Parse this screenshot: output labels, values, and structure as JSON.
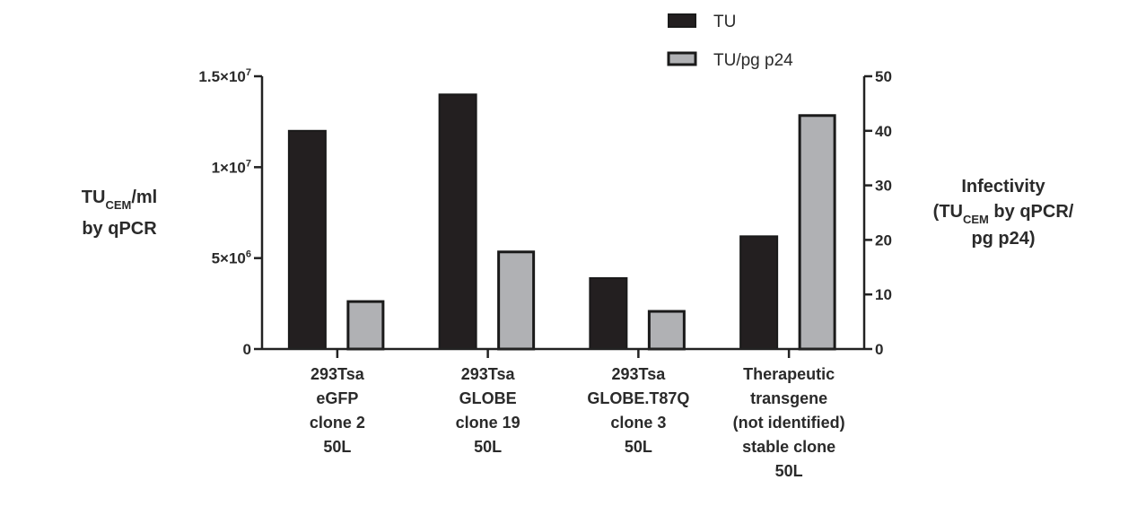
{
  "chart_data": {
    "type": "bar",
    "categories": [
      [
        "293Tsa",
        "eGFP",
        "clone 2",
        "50L"
      ],
      [
        "293Tsa",
        "GLOBE",
        "clone 19",
        "50L"
      ],
      [
        "293Tsa",
        "GLOBE.T87Q",
        "clone 3",
        "50L"
      ],
      [
        "Therapeutic",
        "transgene",
        "(not identified)",
        "stable clone",
        "50L"
      ]
    ],
    "series": [
      {
        "name": "TU",
        "axis": "left",
        "color": "#231f20",
        "values": [
          12000000,
          14000000,
          3900000,
          6200000
        ]
      },
      {
        "name": "TU/pg p24",
        "axis": "right",
        "color": "#b0b1b4",
        "values": [
          8.7,
          17.8,
          6.9,
          42.8
        ]
      }
    ],
    "left_axis": {
      "title_main": "TU",
      "title_sub": "CEM",
      "title_rest": "/ml",
      "title_line2": "by qPCR",
      "ylim": [
        0,
        15000000
      ],
      "ticks": [
        {
          "value": 0,
          "label": "0"
        },
        {
          "value": 5000000,
          "label_base": "5×10",
          "label_exp": "6"
        },
        {
          "value": 10000000,
          "label_base": "1×10",
          "label_exp": "7"
        },
        {
          "value": 15000000,
          "label_base": "1.5×10",
          "label_exp": "7"
        }
      ]
    },
    "right_axis": {
      "title_line1": "Infectivity",
      "title_line2_pre": "(TU",
      "title_line2_sub": "CEM",
      "title_line2_post": " by qPCR/",
      "title_line3": "pg p24)",
      "ylim": [
        0,
        50
      ],
      "ticks": [
        0,
        10,
        20,
        30,
        40,
        50
      ]
    },
    "legend": {
      "placement": "top-right",
      "items": [
        {
          "label": "TU",
          "color": "#231f20"
        },
        {
          "label": "TU/pg p24",
          "color": "#b0b1b4"
        }
      ]
    },
    "grid": false
  }
}
